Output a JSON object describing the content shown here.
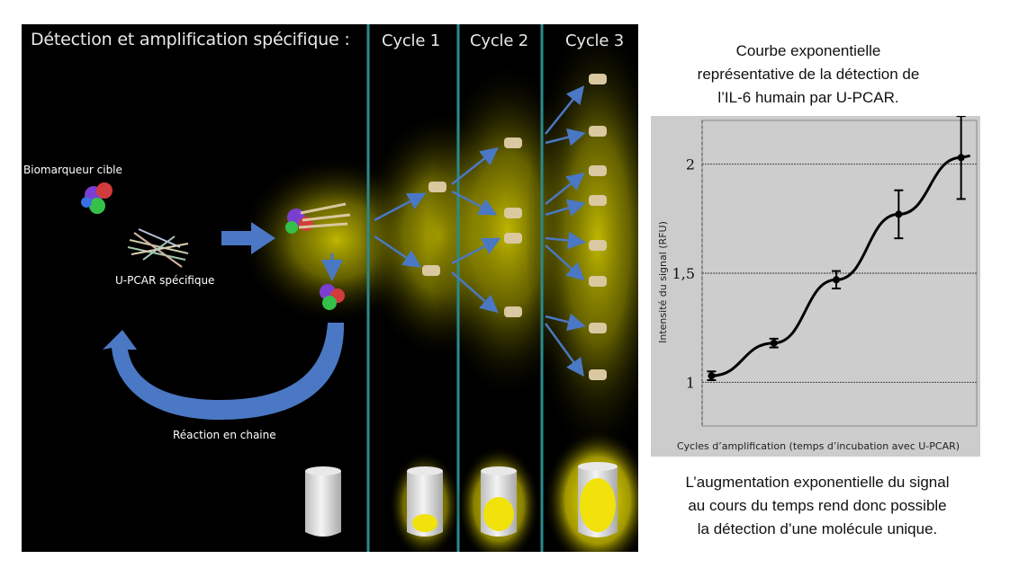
{
  "diagram": {
    "title": "Détection et amplification spécifique :",
    "cycles": [
      "Cycle 1",
      "Cycle 2",
      "Cycle 3"
    ],
    "labels": {
      "biomarker": "Biomarqueur cible",
      "upcar": "U-PCAR spécifique",
      "reaction": "Réaction en chaine"
    },
    "colors": {
      "background": "#000000",
      "arrow": "#4a78c4",
      "glow": "#f2e600",
      "divider": "#2a8a8c"
    }
  },
  "chart_caption": [
    "Courbe exponentielle",
    "représentative de la détection de",
    "l’IL-6 humain par U-PCAR."
  ],
  "bottom_caption": [
    "L’augmentation exponentielle du signal",
    "au cours du temps rend donc possible",
    "la détection d’une molécule unique."
  ],
  "chart_data": {
    "type": "line",
    "xlabel": "Cycles d’amplification (temps d’incubation avec U-PCAR)",
    "ylabel": "Intensité du signal (RFU)",
    "yticks": [
      "1",
      "1,5",
      "2"
    ],
    "ylim": [
      0.8,
      2.2
    ],
    "x": [
      1,
      2,
      3,
      4,
      5
    ],
    "series": [
      {
        "values": [
          1.03,
          1.18,
          1.47,
          1.77,
          2.03
        ],
        "errors": [
          0.02,
          0.02,
          0.04,
          0.11,
          0.19
        ]
      }
    ],
    "grid": true
  }
}
